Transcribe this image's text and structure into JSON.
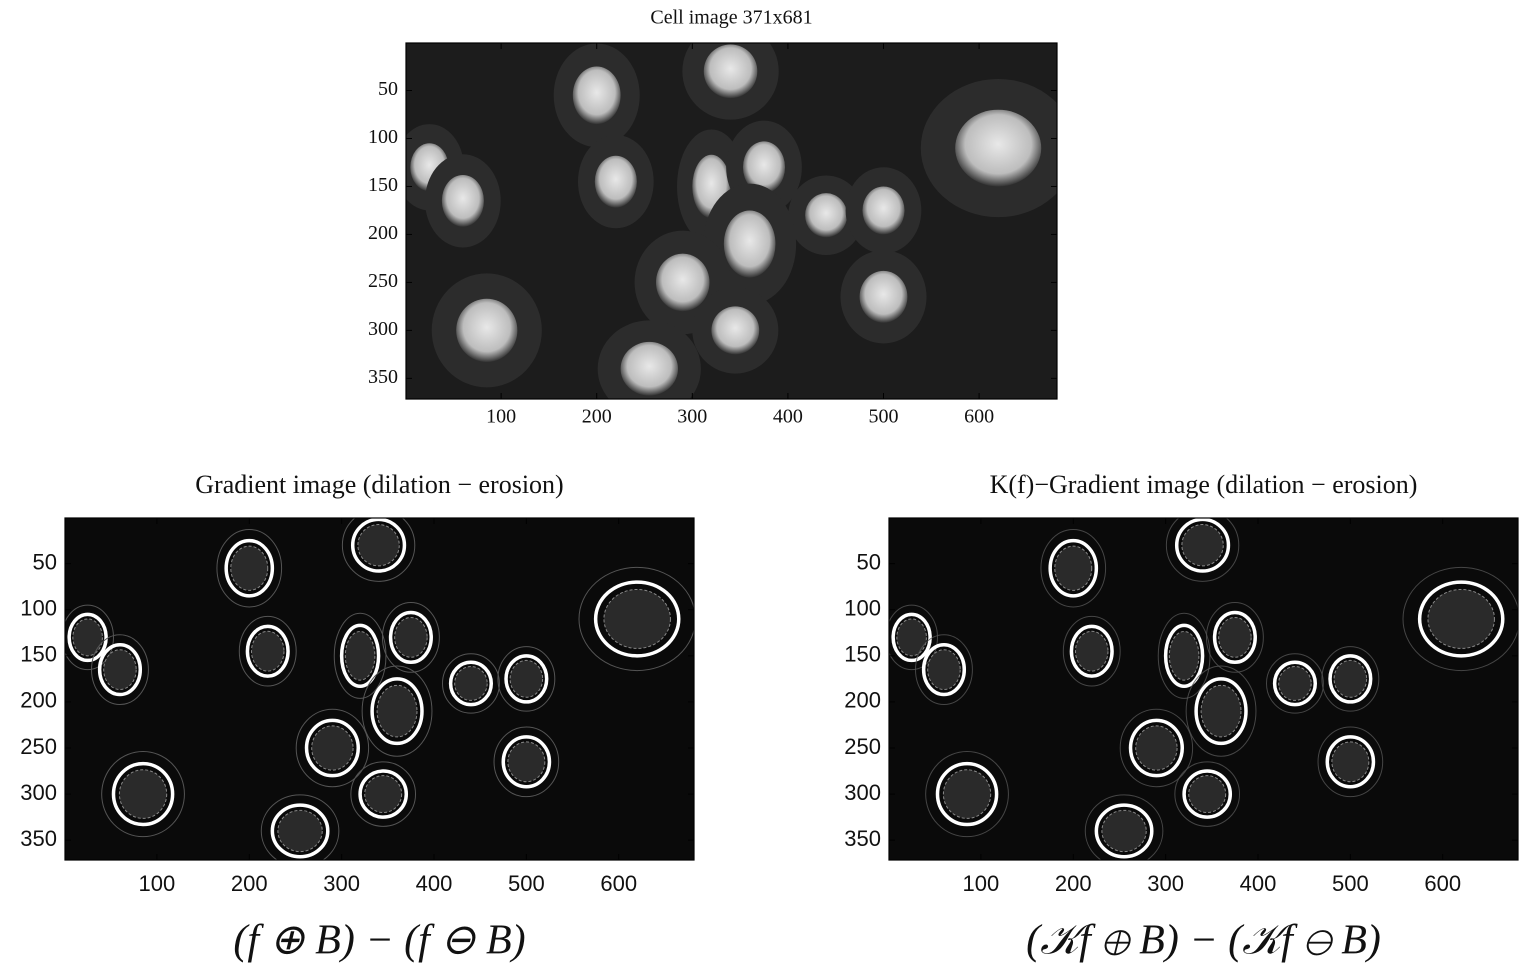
{
  "panels": [
    {
      "title": "Cell image 371x681",
      "xlim": [
        0.5,
        681.5
      ],
      "ylim": [
        0.5,
        371.5
      ],
      "xticks": [
        100,
        200,
        300,
        400,
        500,
        600
      ],
      "yticks": [
        50,
        100,
        150,
        200,
        250,
        300,
        350
      ]
    },
    {
      "title": "Gradient image (dilation − erosion)",
      "xlim": [
        0.5,
        681.5
      ],
      "ylim": [
        0.5,
        371.5
      ],
      "xticks": [
        100,
        200,
        300,
        400,
        500,
        600
      ],
      "yticks": [
        50,
        100,
        150,
        200,
        250,
        300,
        350
      ],
      "formula": "(f ⊕ B) − (f ⊖ B)"
    },
    {
      "title": "K(f)−Gradient image (dilation − erosion)",
      "xlim": [
        0.5,
        681.5
      ],
      "ylim": [
        0.5,
        371.5
      ],
      "xticks": [
        100,
        200,
        300,
        400,
        500,
        600
      ],
      "yticks": [
        50,
        100,
        150,
        200,
        250,
        300,
        350
      ],
      "formula": "(𝒦f ⊕ B) − (𝒦f ⊖ B)"
    }
  ]
}
